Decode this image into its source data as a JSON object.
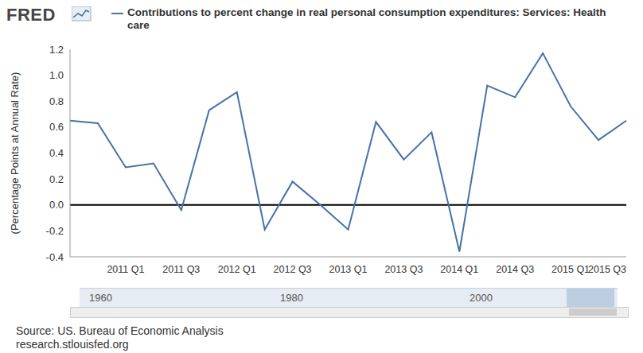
{
  "chart_data": {
    "type": "line",
    "logo": "FRED",
    "title": "Contributions to percent change in real personal consumption expenditures: Services: Health care",
    "y_label": "(Percentage Points at Annual Rate)",
    "categories": [
      null,
      null,
      "2011 Q1",
      null,
      "2011 Q3",
      null,
      "2012 Q1",
      null,
      "2012 Q3",
      null,
      "2013 Q1",
      null,
      "2013 Q3",
      null,
      "2014 Q1",
      null,
      "2014 Q3",
      null,
      "2015 Q1",
      null,
      "2015 Q3"
    ],
    "series": [
      {
        "name": "Contributions to percent change in real personal consumption expenditures: Services: Health care",
        "color": "#4572a7",
        "values": [
          0.65,
          0.63,
          0.29,
          0.32,
          -0.04,
          0.73,
          0.87,
          -0.19,
          0.18,
          0.0,
          -0.19,
          0.64,
          0.35,
          0.56,
          -0.36,
          0.92,
          0.83,
          1.17,
          0.76,
          0.5,
          0.65
        ]
      }
    ],
    "ylim": [
      -0.4,
      1.2
    ],
    "yticks": [
      -0.4,
      -0.2,
      {
        "value": 0,
        "label": "0.0"
      },
      0.2,
      0.4,
      0.6,
      0.8,
      {
        "value": 1,
        "label": "1.0"
      },
      1.2
    ],
    "grid": false,
    "navigator_labels": [
      "1960",
      "1980",
      "2000"
    ],
    "source": "Source: US. Bureau of Economic Analysis",
    "source_url": "research.stlouisfed.org"
  }
}
